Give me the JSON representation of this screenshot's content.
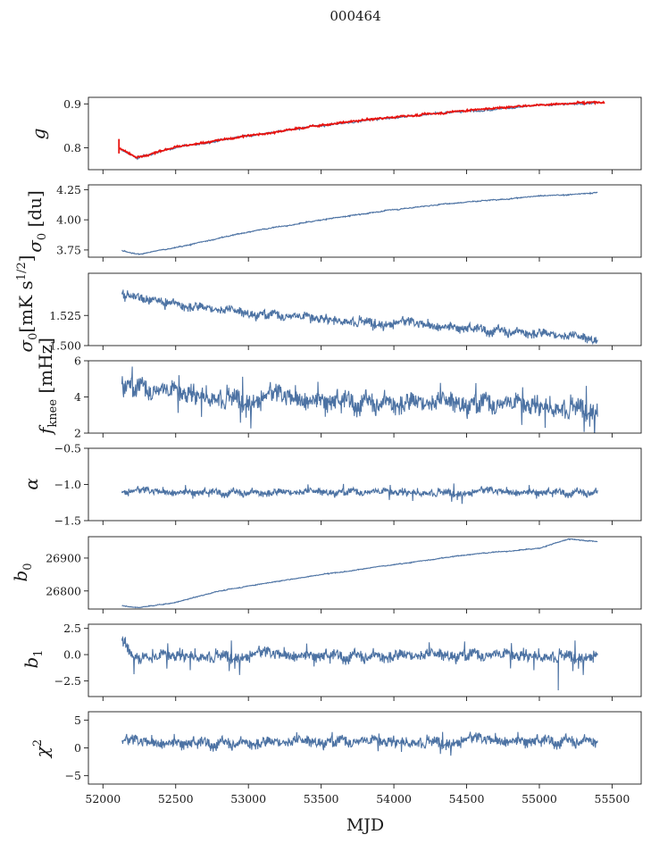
{
  "figure": {
    "title": "000464"
  },
  "chart_data": {
    "type": "line",
    "title": "000464",
    "xlabel": "MJD",
    "xlim": [
      51900,
      55700
    ],
    "xticks": [
      52000,
      52500,
      53000,
      53500,
      54000,
      54500,
      55000,
      55500
    ],
    "x_range": [
      52130,
      55400
    ],
    "panels": [
      {
        "name": "g",
        "ylabel": "g",
        "ylim": [
          0.75,
          0.915
        ],
        "yticks": [
          0.8,
          0.9
        ],
        "ytick_labels": [
          "0.8",
          "0.9"
        ],
        "color": "#4c72a3",
        "trend": [
          [
            52130,
            0.795
          ],
          [
            52230,
            0.776
          ],
          [
            52500,
            0.801
          ],
          [
            53000,
            0.827
          ],
          [
            53500,
            0.851
          ],
          [
            54000,
            0.869
          ],
          [
            54500,
            0.884
          ],
          [
            55000,
            0.897
          ],
          [
            55400,
            0.903
          ]
        ],
        "noise": 0.002,
        "spikes": 0,
        "overlay": {
          "color": "#e8130f",
          "trend": [
            [
              52110,
              0.8
            ],
            [
              52230,
              0.777
            ],
            [
              52500,
              0.802
            ],
            [
              53000,
              0.828
            ],
            [
              53500,
              0.852
            ],
            [
              54000,
              0.87
            ],
            [
              54500,
              0.885
            ],
            [
              55000,
              0.898
            ],
            [
              55450,
              0.905
            ]
          ],
          "noise": 0.002,
          "start_spike": [
            52110,
            0.82,
            0.787
          ]
        }
      },
      {
        "name": "sigma0",
        "ylabel": "σ0 [du]",
        "ylim": [
          3.69,
          4.29
        ],
        "yticks": [
          3.75,
          4.0,
          4.25
        ],
        "ytick_labels": [
          "3.75",
          "4.00",
          "4.25"
        ],
        "color": "#4c72a3",
        "trend": [
          [
            52130,
            3.745
          ],
          [
            52250,
            3.715
          ],
          [
            52500,
            3.77
          ],
          [
            53000,
            3.9
          ],
          [
            53500,
            4.0
          ],
          [
            54000,
            4.085
          ],
          [
            54500,
            4.15
          ],
          [
            55000,
            4.195
          ],
          [
            55400,
            4.225
          ]
        ],
        "noise": 0.004,
        "spikes": 0
      },
      {
        "name": "sigma0-mk",
        "ylabel": "σ0[mK s1/2]",
        "ylim": [
          1.5,
          1.56
        ],
        "yticks": [
          1.5,
          1.525
        ],
        "ytick_labels": [
          "1.500",
          "1.525"
        ],
        "color": "#4c72a3",
        "trend": [
          [
            52130,
            1.543
          ],
          [
            52500,
            1.535
          ],
          [
            53000,
            1.527
          ],
          [
            53500,
            1.523
          ],
          [
            54000,
            1.519
          ],
          [
            54500,
            1.515
          ],
          [
            55000,
            1.511
          ],
          [
            55400,
            1.505
          ]
        ],
        "noise": 0.0035,
        "spikes": 0.004
      },
      {
        "name": "fknee",
        "ylabel": "fknee [mHz]",
        "ylim": [
          2,
          6
        ],
        "yticks": [
          2,
          4,
          6
        ],
        "ytick_labels": [
          "2",
          "4",
          "6"
        ],
        "color": "#4c72a3",
        "trend": [
          [
            52130,
            4.6
          ],
          [
            52500,
            4.3
          ],
          [
            53000,
            4.0
          ],
          [
            53500,
            3.9
          ],
          [
            54000,
            3.8
          ],
          [
            54500,
            3.7
          ],
          [
            55000,
            3.6
          ],
          [
            55400,
            3.5
          ]
        ],
        "noise": 0.5,
        "spikes": 1.2
      },
      {
        "name": "alpha",
        "ylabel": "α",
        "ylim": [
          -1.5,
          -0.5
        ],
        "yticks": [
          -1.5,
          -1.0,
          -0.5
        ],
        "ytick_labels": [
          "−1.5",
          "−1.0",
          "−0.5"
        ],
        "color": "#4c72a3",
        "trend": [
          [
            52130,
            -1.1
          ],
          [
            55400,
            -1.1
          ]
        ],
        "noise": 0.045,
        "spikes": 0.12
      },
      {
        "name": "b0",
        "ylabel": "b0",
        "ylim": [
          26745,
          26965
        ],
        "yticks": [
          26800,
          26900
        ],
        "ytick_labels": [
          "26800",
          "26900"
        ],
        "color": "#4c72a3",
        "trend": [
          [
            52130,
            26755
          ],
          [
            52250,
            26750
          ],
          [
            52500,
            26765
          ],
          [
            52800,
            26800
          ],
          [
            53000,
            26815
          ],
          [
            53500,
            26850
          ],
          [
            54000,
            26880
          ],
          [
            54500,
            26910
          ],
          [
            55000,
            26930
          ],
          [
            55200,
            26958
          ],
          [
            55400,
            26950
          ]
        ],
        "noise": 1.2,
        "spikes": 0
      },
      {
        "name": "b1",
        "ylabel": "b1",
        "ylim": [
          -4.0,
          2.9
        ],
        "yticks": [
          -2.5,
          0.0,
          2.5
        ],
        "ytick_labels": [
          "−2.5",
          "0.0",
          "2.5"
        ],
        "color": "#4c72a3",
        "trend": [
          [
            52130,
            1.8
          ],
          [
            52200,
            0.0
          ],
          [
            55400,
            0.0
          ]
        ],
        "noise": 0.5,
        "spikes": 1.4,
        "outlier": [
          55130,
          -3.4
        ]
      },
      {
        "name": "chi2",
        "ylabel": "χ2",
        "ylim": [
          -6.5,
          6.5
        ],
        "yticks": [
          -5,
          0,
          5
        ],
        "ytick_labels": [
          "−5",
          "0",
          "5"
        ],
        "color": "#4c72a3",
        "trend": [
          [
            52130,
            1.0
          ],
          [
            55400,
            1.5
          ]
        ],
        "noise": 0.9,
        "spikes": 1.8
      }
    ]
  }
}
